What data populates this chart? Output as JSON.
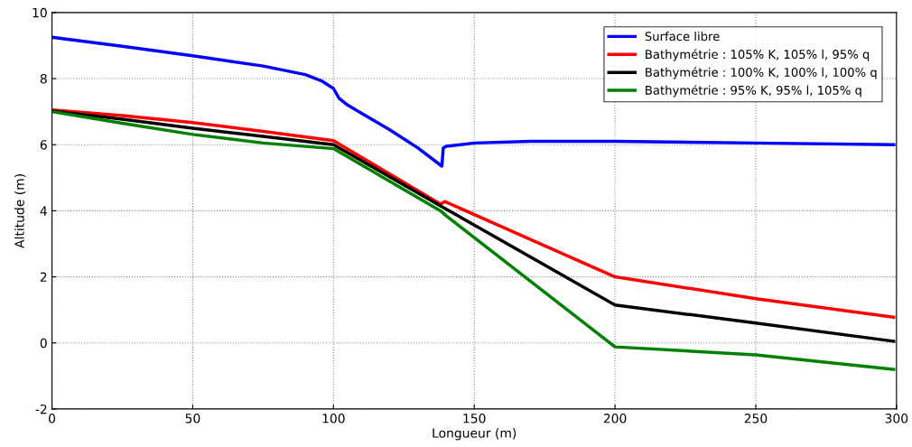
{
  "chart_data": {
    "type": "line",
    "xlabel": "Longueur (m)",
    "ylabel": "Altitude (m)",
    "xlim": [
      0,
      300
    ],
    "ylim": [
      -2,
      10
    ],
    "xticks": [
      0,
      50,
      100,
      150,
      200,
      250,
      300
    ],
    "yticks": [
      -2,
      0,
      2,
      4,
      6,
      8,
      10
    ],
    "grid": true,
    "legend": "top right",
    "line_style": "solid",
    "marker": "none",
    "series": [
      {
        "name": "Surface libre",
        "color": "#0000ff",
        "x": [
          0,
          25,
          50,
          75,
          90,
          96,
          100,
          102,
          105,
          110,
          120,
          130,
          138.5,
          139,
          140,
          150,
          170,
          200,
          250,
          299
        ],
        "values": [
          9.25,
          8.98,
          8.69,
          8.38,
          8.12,
          7.92,
          7.7,
          7.4,
          7.2,
          6.95,
          6.45,
          5.9,
          5.35,
          5.9,
          5.95,
          6.05,
          6.1,
          6.1,
          6.05,
          6.0
        ]
      },
      {
        "name": "Bathymétrie : 105% K, 105% l, 95% q",
        "color": "#ff0000",
        "x": [
          0,
          25,
          50,
          75,
          100,
          138,
          139.5,
          200,
          250,
          299
        ],
        "values": [
          7.05,
          6.88,
          6.67,
          6.4,
          6.12,
          4.2,
          4.28,
          2.0,
          1.34,
          0.78
        ]
      },
      {
        "name": "Bathymétrie : 100% K, 100% l, 100% q",
        "color": "#000000",
        "x": [
          0,
          25,
          50,
          75,
          100,
          139,
          200,
          250,
          299
        ],
        "values": [
          7.02,
          6.77,
          6.5,
          6.25,
          6.0,
          4.1,
          1.15,
          0.6,
          0.05
        ]
      },
      {
        "name": "Bathymétrie : 95% K, 95% l, 105% q",
        "color": "#008000",
        "x": [
          0,
          25,
          50,
          75,
          100,
          138,
          140,
          200,
          250,
          299
        ],
        "values": [
          7.0,
          6.65,
          6.31,
          6.05,
          5.88,
          4.0,
          3.85,
          -0.12,
          -0.36,
          -0.8
        ]
      }
    ]
  }
}
